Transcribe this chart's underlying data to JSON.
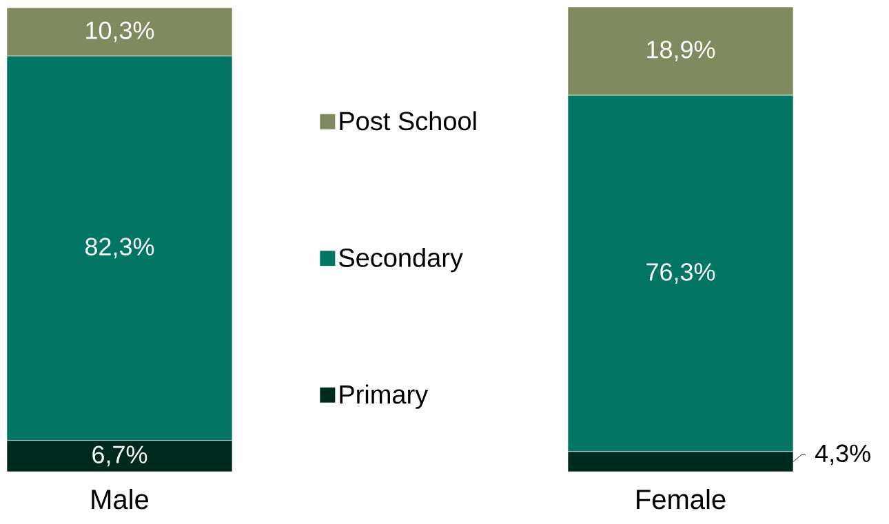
{
  "chart_data": {
    "type": "bar",
    "stacked": true,
    "legend": "center",
    "categories": [
      "Male",
      "Female"
    ],
    "series": [
      {
        "name": "Primary",
        "color": "#012a1f",
        "values": [
          6.7,
          4.3
        ],
        "value_labels": [
          "6,7%",
          "4,3%"
        ]
      },
      {
        "name": "Secondary",
        "color": "#037565",
        "values": [
          82.3,
          76.3
        ],
        "value_labels": [
          "82,3%",
          "76,3%"
        ]
      },
      {
        "name": "Post School",
        "color": "#7f8a5e",
        "values": [
          10.3,
          18.9
        ],
        "value_labels": [
          "10,3%",
          "18,9%"
        ]
      }
    ]
  }
}
